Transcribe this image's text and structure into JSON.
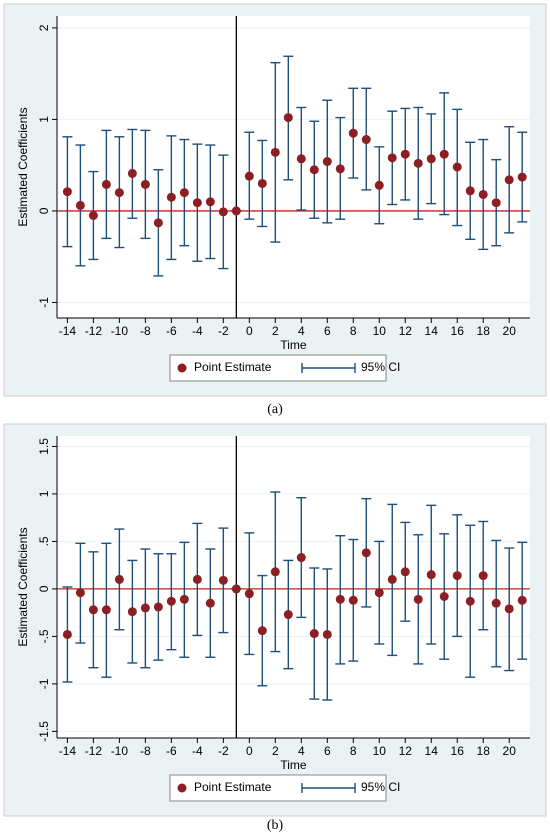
{
  "chart_data": [
    {
      "type": "errorbar",
      "caption": "(a)",
      "y_label": "Estimated Coefficients",
      "x_label": "Time",
      "x": [
        -14,
        -13,
        -12,
        -11,
        -10,
        -9,
        -8,
        -7,
        -6,
        -5,
        -4,
        -3,
        -2,
        -1,
        0,
        1,
        2,
        3,
        4,
        5,
        6,
        7,
        8,
        9,
        10,
        11,
        12,
        13,
        14,
        15,
        16,
        17,
        18,
        19,
        20,
        21
      ],
      "series": [
        {
          "name": "Point Estimate",
          "color": "#8b1f24",
          "values": [
            0.21,
            0.06,
            -0.05,
            0.29,
            0.2,
            0.41,
            0.29,
            -0.13,
            0.15,
            0.2,
            0.09,
            0.1,
            -0.01,
            0,
            0.38,
            0.3,
            0.64,
            1.02,
            0.57,
            0.45,
            0.54,
            0.46,
            0.85,
            0.78,
            0.28,
            0.58,
            0.62,
            0.52,
            0.57,
            0.62,
            0.48,
            0.22,
            0.18,
            0.09,
            0.34,
            0.37
          ]
        },
        {
          "name": "95% CI",
          "color": "#1f4e79",
          "lower": [
            -0.39,
            -0.6,
            -0.53,
            -0.3,
            -0.4,
            -0.08,
            -0.3,
            -0.71,
            -0.53,
            -0.38,
            -0.55,
            -0.52,
            -0.63,
            0,
            -0.09,
            -0.17,
            -0.34,
            0.34,
            0.01,
            -0.08,
            -0.13,
            -0.09,
            0.36,
            0.23,
            -0.14,
            0.07,
            0.12,
            -0.09,
            0.08,
            -0.04,
            -0.16,
            -0.31,
            -0.42,
            -0.38,
            -0.24,
            -0.12
          ],
          "upper": [
            0.81,
            0.72,
            0.43,
            0.88,
            0.81,
            0.89,
            0.88,
            0.45,
            0.82,
            0.78,
            0.73,
            0.72,
            0.61,
            0,
            0.86,
            0.77,
            1.62,
            1.69,
            1.13,
            0.98,
            1.21,
            1.02,
            1.34,
            1.34,
            0.7,
            1.09,
            1.12,
            1.13,
            1.06,
            1.29,
            1.11,
            0.75,
            0.78,
            0.56,
            0.92,
            0.86
          ]
        }
      ],
      "xlim": [
        -14.8,
        21.6
      ],
      "xticks": [
        -14,
        -12,
        -10,
        -8,
        -6,
        -4,
        -2,
        0,
        2,
        4,
        6,
        8,
        10,
        12,
        14,
        16,
        18,
        20
      ],
      "ylim": [
        -1.17,
        2.13
      ],
      "yticks": [
        -1,
        0,
        1,
        2
      ],
      "hline": 0,
      "hline_color": "#cc2222",
      "vline": -1,
      "vline_color": "#000000",
      "grid": true
    },
    {
      "type": "errorbar",
      "caption": "(b)",
      "y_label": "Estimated Coefficients",
      "x_label": "Time",
      "x": [
        -14,
        -13,
        -12,
        -11,
        -10,
        -9,
        -8,
        -7,
        -6,
        -5,
        -4,
        -3,
        -2,
        -1,
        0,
        1,
        2,
        3,
        4,
        5,
        6,
        7,
        8,
        9,
        10,
        11,
        12,
        13,
        14,
        15,
        16,
        17,
        18,
        19,
        20,
        21
      ],
      "series": [
        {
          "name": "Point Estimate",
          "color": "#8b1f24",
          "values": [
            -0.48,
            -0.04,
            -0.22,
            -0.22,
            0.1,
            -0.24,
            -0.2,
            -0.19,
            -0.13,
            -0.11,
            0.1,
            -0.15,
            0.09,
            0,
            -0.05,
            -0.44,
            0.18,
            -0.27,
            0.33,
            -0.47,
            -0.48,
            -0.11,
            -0.12,
            0.38,
            -0.04,
            0.1,
            0.18,
            -0.11,
            0.15,
            -0.08,
            0.14,
            -0.13,
            0.14,
            -0.15,
            -0.21,
            -0.12
          ]
        },
        {
          "name": "95% CI",
          "color": "#1f4e79",
          "lower": [
            -0.98,
            -0.57,
            -0.83,
            -0.93,
            -0.43,
            -0.78,
            -0.83,
            -0.75,
            -0.64,
            -0.72,
            -0.49,
            -0.72,
            -0.46,
            0,
            -0.69,
            -1.02,
            -0.66,
            -0.84,
            -0.3,
            -1.16,
            -1.17,
            -0.79,
            -0.76,
            -0.19,
            -0.58,
            -0.7,
            -0.34,
            -0.79,
            -0.58,
            -0.74,
            -0.5,
            -0.93,
            -0.43,
            -0.82,
            -0.86,
            -0.74
          ],
          "upper": [
            0.02,
            0.48,
            0.39,
            0.48,
            0.63,
            0.3,
            0.42,
            0.37,
            0.37,
            0.49,
            0.69,
            0.42,
            0.64,
            0,
            0.59,
            0.14,
            1.02,
            0.3,
            0.96,
            0.22,
            0.21,
            0.56,
            0.52,
            0.95,
            0.5,
            0.89,
            0.7,
            0.57,
            0.88,
            0.58,
            0.78,
            0.67,
            0.71,
            0.51,
            0.43,
            0.49
          ]
        }
      ],
      "xlim": [
        -14.8,
        21.6
      ],
      "xticks": [
        -14,
        -12,
        -10,
        -8,
        -6,
        -4,
        -2,
        0,
        2,
        4,
        6,
        8,
        10,
        12,
        14,
        16,
        18,
        20
      ],
      "ylim": [
        -1.57,
        1.61
      ],
      "yticks": [
        -1.5,
        -1,
        {
          "value": -0.5,
          "label": "-.5"
        },
        0,
        {
          "value": 0.5,
          "label": ".5"
        },
        1,
        1.5
      ],
      "hline": 0,
      "hline_color": "#cc2222",
      "vline": -1,
      "vline_color": "#000000",
      "grid": true
    }
  ]
}
